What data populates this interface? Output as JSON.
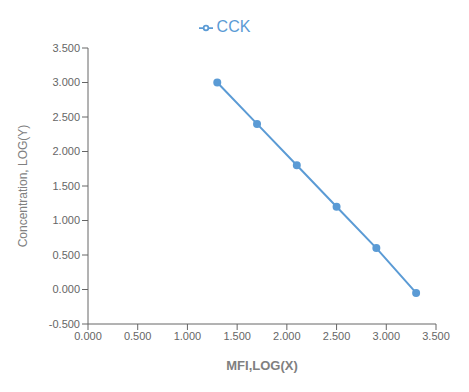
{
  "chart_data": {
    "type": "line",
    "xlabel": "MFI,LOG(X)",
    "ylabel": "Concentration, LOG(Y)",
    "x": [
      1.3,
      1.7,
      2.1,
      2.5,
      2.9,
      3.3
    ],
    "series": [
      {
        "name": "CCK",
        "color": "#5b9bd5",
        "marker": "circle",
        "values": [
          3.0,
          2.4,
          1.8,
          1.2,
          0.6,
          -0.05
        ]
      }
    ],
    "xlim": [
      0.0,
      3.5
    ],
    "ylim": [
      -0.5,
      3.5
    ],
    "xticks": [
      {
        "value": 0.0,
        "label": "0.000"
      },
      {
        "value": 0.5,
        "label": "0.500"
      },
      {
        "value": 1.0,
        "label": "1.000"
      },
      {
        "value": 1.5,
        "label": "1.500"
      },
      {
        "value": 2.0,
        "label": "2.000"
      },
      {
        "value": 2.5,
        "label": "2.500"
      },
      {
        "value": 3.0,
        "label": "3.000"
      },
      {
        "value": 3.5,
        "label": "3.500"
      }
    ],
    "yticks": [
      {
        "value": -0.5,
        "label": "-0.500"
      },
      {
        "value": 0.0,
        "label": "0.000"
      },
      {
        "value": 0.5,
        "label": "0.500"
      },
      {
        "value": 1.0,
        "label": "1.000"
      },
      {
        "value": 1.5,
        "label": "1.500"
      },
      {
        "value": 2.0,
        "label": "2.000"
      },
      {
        "value": 2.5,
        "label": "2.500"
      },
      {
        "value": 3.0,
        "label": "3.000"
      },
      {
        "value": 3.5,
        "label": "3.500"
      }
    ],
    "grid": false,
    "legend": "top"
  }
}
